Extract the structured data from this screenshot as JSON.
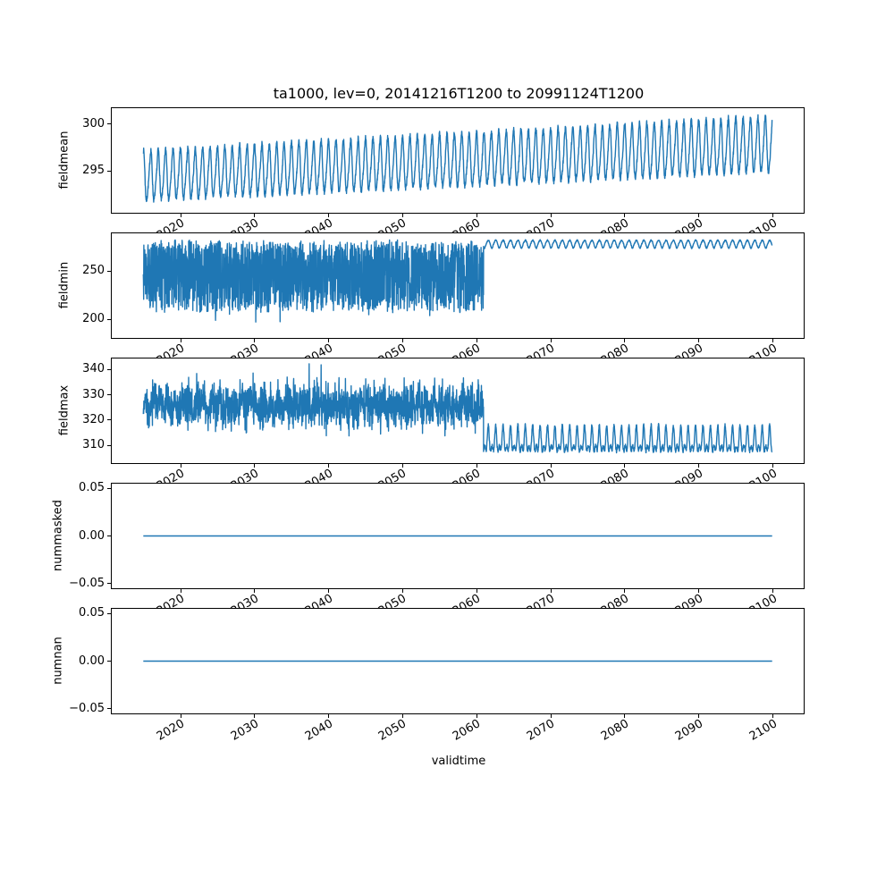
{
  "title": "ta1000, lev=0, 20141216T1200 to 20991124T1200",
  "xlabel": "validtime",
  "line_color": "#1f77b4",
  "xlim": [
    2010.7,
    2104.16
  ],
  "xticks": [
    {
      "v": 2020,
      "label": "2020"
    },
    {
      "v": 2030,
      "label": "2030"
    },
    {
      "v": 2040,
      "label": "2040"
    },
    {
      "v": 2050,
      "label": "2050"
    },
    {
      "v": 2060,
      "label": "2060"
    },
    {
      "v": 2070,
      "label": "2070"
    },
    {
      "v": 2080,
      "label": "2080"
    },
    {
      "v": 2090,
      "label": "2090"
    },
    {
      "v": 2100,
      "label": "2100"
    }
  ],
  "chart_data": [
    {
      "type": "line",
      "ylabel": "fieldmean",
      "ylim": [
        290.55,
        301.7
      ],
      "yticks": [
        {
          "v": 295,
          "label": "295"
        },
        {
          "v": 300,
          "label": "300"
        }
      ],
      "series": [
        {
          "name": "fieldmean",
          "color": "#1f77b4",
          "segments": [
            {
              "kind": "seasonal",
              "from": 2014.96,
              "to": 2099.9,
              "base": 294.35,
              "trend": 0.04,
              "amp1": 2.55,
              "amp1_growth": 0.3,
              "amp2": 0.45,
              "noise": 0.3,
              "phase": 0.7,
              "max": 301.5,
              "seed": 7
            }
          ]
        }
      ]
    },
    {
      "type": "line",
      "ylabel": "fieldmin",
      "ylim": [
        180.8,
        289.2
      ],
      "yticks": [
        {
          "v": 200,
          "label": "200"
        },
        {
          "v": 250,
          "label": "250"
        }
      ],
      "series": [
        {
          "name": "fieldmin",
          "color": "#1f77b4",
          "segments": [
            {
              "kind": "noisy_min",
              "from": 2014.96,
              "to": 2060.92,
              "top": 280.5,
              "top_wiggle": 2,
              "spread": 72,
              "shape": 1.15,
              "dip_p": 0.03,
              "dip": 22,
              "min": 186,
              "seed": 11
            },
            {
              "kind": "spiky",
              "from": 2060.92,
              "to": 2099.9,
              "base": 281.0,
              "wig2": 1.0,
              "noise": 0.6,
              "dir": -1,
              "spike": 8.0,
              "sharp": 2.6,
              "phase": 0.8,
              "seed": 13
            }
          ]
        }
      ]
    },
    {
      "type": "line",
      "ylabel": "fieldmax",
      "ylim": [
        303.0,
        344.4
      ],
      "yticks": [
        {
          "v": 310,
          "label": "310"
        },
        {
          "v": 320,
          "label": "320"
        },
        {
          "v": 330,
          "label": "330"
        },
        {
          "v": 340,
          "label": "340"
        }
      ],
      "series": [
        {
          "name": "fieldmax",
          "color": "#1f77b4",
          "segments": [
            {
              "kind": "noisy_gauss",
              "from": 2014.96,
              "to": 2060.92,
              "center": 325.8,
              "top_wiggle": 1.5,
              "std": 4.0,
              "spike_p": 0.012,
              "spike": 8,
              "min": 305,
              "max": 342.3,
              "seed": 17
            },
            {
              "kind": "spiky",
              "from": 2060.92,
              "to": 2099.9,
              "base": 308.6,
              "wig2": 1.2,
              "noise": 0.8,
              "dir": 1,
              "spike": 8.2,
              "sharp": 3,
              "phase": 0.3,
              "min": 304.5,
              "seed": 19
            }
          ]
        }
      ]
    },
    {
      "type": "line",
      "ylabel": "nummasked",
      "ylim": [
        -0.055,
        0.055
      ],
      "yticks": [
        {
          "v": -0.05,
          "label": "−0.05"
        },
        {
          "v": 0,
          "label": "0.00"
        },
        {
          "v": 0.05,
          "label": "0.05"
        }
      ],
      "series": [
        {
          "name": "nummasked",
          "color": "#1f77b4",
          "segments": [
            {
              "kind": "flat",
              "from": 2014.96,
              "to": 2099.9,
              "value": 0
            }
          ]
        }
      ]
    },
    {
      "type": "line",
      "ylabel": "numnan",
      "ylim": [
        -0.055,
        0.055
      ],
      "yticks": [
        {
          "v": -0.05,
          "label": "−0.05"
        },
        {
          "v": 0,
          "label": "0.00"
        },
        {
          "v": 0.05,
          "label": "0.05"
        }
      ],
      "series": [
        {
          "name": "numnan",
          "color": "#1f77b4",
          "segments": [
            {
              "kind": "flat",
              "from": 2014.96,
              "to": 2099.9,
              "value": 0
            }
          ]
        }
      ]
    }
  ]
}
